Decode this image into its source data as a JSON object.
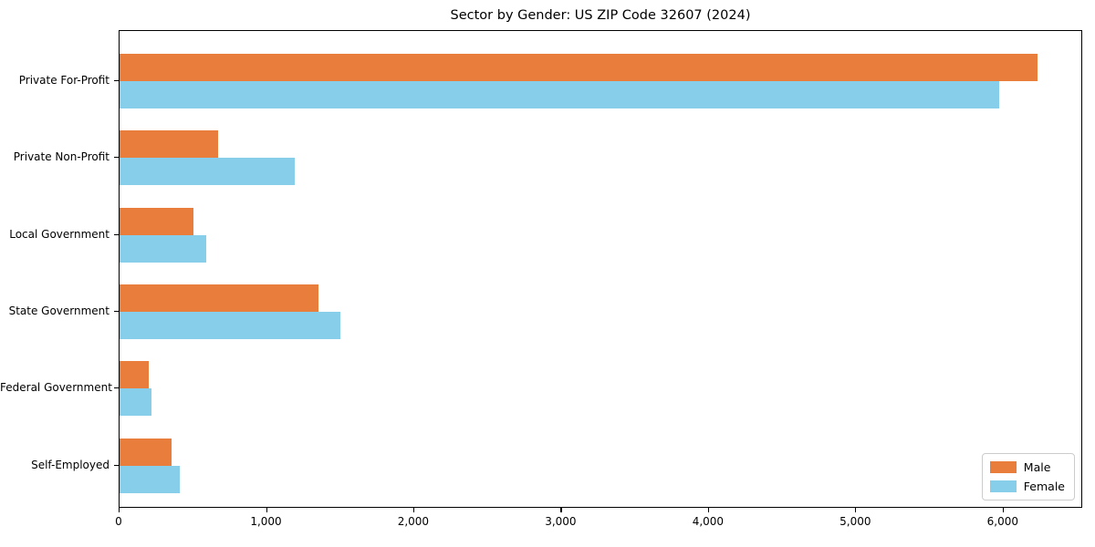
{
  "chart_data": {
    "type": "bar",
    "orientation": "horizontal",
    "title": "Sector by Gender: US ZIP Code 32607 (2024)",
    "categories": [
      "Private For-Profit",
      "Private Non-Profit",
      "Local Government",
      "State Government",
      "Federal Government",
      "Self-Employed"
    ],
    "series": [
      {
        "name": "Male",
        "color": "#E87D3C",
        "values": [
          6230,
          670,
          500,
          1350,
          200,
          350
        ]
      },
      {
        "name": "Female",
        "color": "#87CEEB",
        "values": [
          5970,
          1190,
          590,
          1500,
          215,
          410
        ]
      }
    ],
    "xlabel": "",
    "ylabel": "",
    "xlim": [
      0,
      6540
    ],
    "xticks": [
      0,
      1000,
      2000,
      3000,
      4000,
      5000,
      6000
    ],
    "xtick_labels": [
      "0",
      "1,000",
      "2,000",
      "3,000",
      "4,000",
      "5,000",
      "6,000"
    ],
    "grid": false,
    "legend_position": "lower right",
    "legend_entries": [
      "Male",
      "Female"
    ]
  }
}
